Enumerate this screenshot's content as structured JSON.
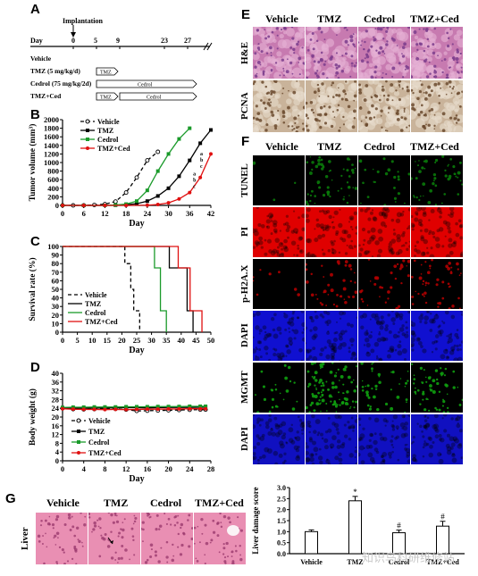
{
  "panel_labels": [
    "A",
    "B",
    "C",
    "D",
    "E",
    "F",
    "G"
  ],
  "panelA": {
    "title": "Implantation",
    "timeline_label": "Day",
    "days": [
      0,
      5,
      9,
      23,
      27
    ],
    "rows": [
      {
        "label": "Vehicle",
        "bar": ""
      },
      {
        "label": "TMZ (5 mg/kg/d)",
        "bar": "TMZ"
      },
      {
        "label": "Cedrol (75 mg/kg/2d)",
        "bar": "Cedrol"
      },
      {
        "label": "TMZ+Ced",
        "bar": "TMZ",
        "bar2": "Cedrol"
      }
    ]
  },
  "panelE": {
    "columns": [
      "Vehicle",
      "TMZ",
      "Cedrol",
      "TMZ+Ced"
    ],
    "rows": [
      "H&E",
      "PCNA"
    ]
  },
  "panelF": {
    "columns": [
      "Vehicle",
      "TMZ",
      "Cedrol",
      "TMZ+Ced"
    ],
    "rows": [
      "TUNEL",
      "PI",
      "p-H2A.X",
      "DAPI",
      "MGMT",
      "DAPI"
    ],
    "colors": [
      "#0a7a0a",
      "#e00000",
      "#b00000",
      "#1010d0",
      "#10a010",
      "#1010c0"
    ]
  },
  "panelG": {
    "columns": [
      "Vehicle",
      "TMZ",
      "Cedrol",
      "TMZ+Ced"
    ],
    "row_label": "Liver"
  },
  "watermark": "知识鸟科研维修站",
  "chart_data": [
    {
      "type": "line",
      "panel": "B",
      "xlabel": "Day",
      "ylabel": "Tumor volume (mm³)",
      "xticks": [
        0,
        6,
        12,
        18,
        24,
        30,
        36,
        42
      ],
      "yticks": [
        0,
        200,
        400,
        600,
        800,
        1000,
        1200,
        1400,
        1600,
        1800,
        2000
      ],
      "xlim": [
        0,
        42
      ],
      "ylim": [
        0,
        2000
      ],
      "series": [
        {
          "name": "Vehicle",
          "color": "#000000",
          "dash": "4,3",
          "marker": "circle-open",
          "x": [
            0,
            3,
            6,
            9,
            12,
            15,
            18,
            21,
            24,
            27
          ],
          "y": [
            0,
            0,
            0,
            10,
            30,
            90,
            300,
            650,
            1050,
            1250
          ]
        },
        {
          "name": "TMZ",
          "color": "#000000",
          "dash": "",
          "marker": "square",
          "x": [
            0,
            6,
            12,
            15,
            18,
            21,
            24,
            27,
            30,
            33,
            36,
            39,
            42
          ],
          "y": [
            0,
            0,
            0,
            5,
            15,
            40,
            100,
            220,
            400,
            680,
            1050,
            1450,
            1760
          ]
        },
        {
          "name": "Cedrol",
          "color": "#1a9a2a",
          "dash": "",
          "marker": "square",
          "x": [
            0,
            6,
            12,
            15,
            18,
            21,
            24,
            27,
            30,
            33,
            36
          ],
          "y": [
            0,
            0,
            0,
            10,
            30,
            100,
            350,
            800,
            1200,
            1550,
            1800
          ]
        },
        {
          "name": "TMZ+Ced",
          "color": "#e01010",
          "dash": "",
          "marker": "circle",
          "x": [
            0,
            6,
            12,
            18,
            24,
            27,
            30,
            33,
            36,
            39,
            42
          ],
          "y": [
            0,
            0,
            0,
            0,
            5,
            20,
            60,
            150,
            300,
            650,
            1200
          ]
        }
      ],
      "annotations": [
        "a",
        "b",
        "c"
      ]
    },
    {
      "type": "line",
      "panel": "C",
      "xlabel": "Day",
      "ylabel": "Survival rate (%)",
      "xticks": [
        0,
        5,
        10,
        15,
        20,
        25,
        30,
        35,
        40,
        45,
        50
      ],
      "yticks": [
        0,
        10,
        20,
        30,
        40,
        50,
        60,
        70,
        80,
        90,
        100
      ],
      "xlim": [
        0,
        50
      ],
      "ylim": [
        0,
        100
      ],
      "series": [
        {
          "name": "Vehicle",
          "color": "#000000",
          "dash": "4,3",
          "x": [
            0,
            21,
            21,
            23,
            23,
            24,
            24,
            26,
            26
          ],
          "y": [
            100,
            100,
            80,
            80,
            50,
            50,
            25,
            25,
            0
          ]
        },
        {
          "name": "TMZ",
          "color": "#000000",
          "dash": "",
          "x": [
            0,
            36,
            36,
            38,
            38,
            42,
            42,
            44,
            44
          ],
          "y": [
            100,
            100,
            75,
            75,
            75,
            75,
            25,
            25,
            0
          ]
        },
        {
          "name": "Cedrol",
          "color": "#1a9a2a",
          "dash": "",
          "x": [
            0,
            31,
            31,
            33,
            33,
            35,
            35
          ],
          "y": [
            100,
            100,
            75,
            75,
            25,
            25,
            0
          ]
        },
        {
          "name": "TMZ+Ced",
          "color": "#e01010",
          "dash": "",
          "x": [
            0,
            39,
            39,
            43,
            43,
            47,
            47
          ],
          "y": [
            100,
            100,
            75,
            75,
            25,
            25,
            0
          ]
        }
      ]
    },
    {
      "type": "line",
      "panel": "D",
      "xlabel": "Day",
      "ylabel": "Body weight (g)",
      "xticks": [
        0,
        4,
        8,
        12,
        16,
        20,
        24,
        28
      ],
      "yticks": [
        0,
        4,
        8,
        12,
        16,
        20,
        24,
        28,
        32,
        36,
        40
      ],
      "xlim": [
        0,
        28
      ],
      "ylim": [
        0,
        40
      ],
      "series": [
        {
          "name": "Vehicle",
          "color": "#000000",
          "dash": "4,3",
          "marker": "circle-open",
          "x": [
            0,
            2,
            4,
            6,
            8,
            10,
            12,
            14,
            16,
            18,
            20,
            22,
            24,
            26,
            27
          ],
          "y": [
            24,
            23.6,
            23.5,
            23.6,
            23.8,
            23.7,
            23.4,
            22.8,
            22.9,
            23,
            23.1,
            23.2,
            23.3,
            23.4,
            23.4
          ]
        },
        {
          "name": "TMZ",
          "color": "#000000",
          "dash": "",
          "marker": "square",
          "x": [
            0,
            2,
            4,
            6,
            8,
            10,
            12,
            14,
            16,
            18,
            20,
            22,
            24,
            26,
            27
          ],
          "y": [
            24.2,
            24,
            24,
            24.1,
            24.2,
            24.2,
            24.3,
            24.3,
            24.2,
            24.3,
            24.4,
            24.4,
            24.4,
            24.5,
            24.5
          ]
        },
        {
          "name": "Cedrol",
          "color": "#1a9a2a",
          "dash": "",
          "marker": "square",
          "x": [
            0,
            2,
            4,
            6,
            8,
            10,
            12,
            14,
            16,
            18,
            20,
            22,
            24,
            26,
            27
          ],
          "y": [
            24.4,
            24.5,
            24.5,
            24.6,
            24.6,
            24.6,
            24.7,
            24.7,
            24.7,
            24.8,
            24.8,
            24.8,
            24.9,
            24.9,
            24.9
          ]
        },
        {
          "name": "TMZ+Ced",
          "color": "#e01010",
          "dash": "",
          "marker": "circle",
          "x": [
            0,
            2,
            4,
            6,
            8,
            10,
            12,
            14,
            16,
            18,
            20,
            22,
            24,
            26,
            27
          ],
          "y": [
            23.8,
            23.6,
            23.5,
            23.5,
            23.4,
            23.5,
            23.4,
            23.5,
            23.6,
            23.6,
            23.7,
            23.7,
            23.8,
            23.8,
            23.8
          ]
        }
      ]
    },
    {
      "type": "bar",
      "panel": "G",
      "ylabel": "Liver damage score",
      "categories": [
        "Vehicle",
        "TMZ",
        "Cedrol",
        "TMZ+Ced"
      ],
      "values": [
        1.0,
        2.4,
        0.95,
        1.25
      ],
      "errors": [
        0.08,
        0.2,
        0.12,
        0.22
      ],
      "markers": [
        "",
        "*",
        "#",
        "#"
      ],
      "yticks": [
        0,
        0.5,
        1.0,
        1.5,
        2.0,
        2.5,
        3.0
      ],
      "ylim": [
        0,
        3.0
      ]
    }
  ]
}
